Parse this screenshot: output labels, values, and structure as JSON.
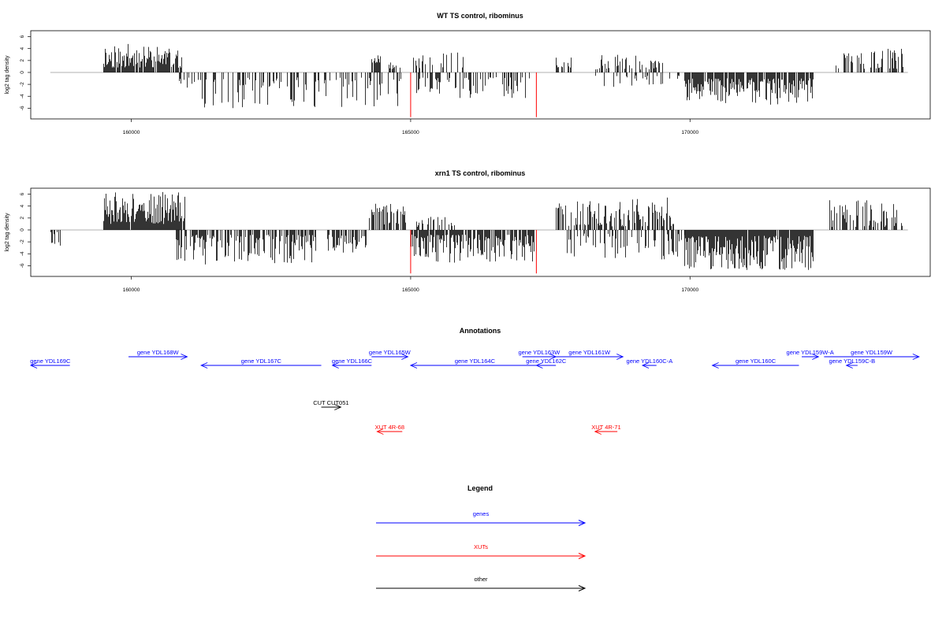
{
  "colors": {
    "gene": "#0000ff",
    "xut": "#ff0000",
    "other": "#000000",
    "bar": "#000000",
    "highlight": "#ff0000",
    "zero_line": "#999999"
  },
  "chart_data": [
    {
      "type": "bar",
      "title": "WT TS control, ribominus",
      "ylabel": "log2 tag density",
      "xlim": [
        158200,
        174300
      ],
      "ylim": [
        -7.8,
        7.0
      ],
      "xticks": [
        160000,
        165000,
        170000
      ],
      "xtick_labels": [
        "160000",
        "165000",
        "170000"
      ],
      "yticks": [
        6,
        4,
        2,
        0,
        -2,
        -4,
        -6
      ],
      "ytick_labels": [
        "6",
        "4",
        "2",
        "0",
        "-2",
        "-4",
        "-6"
      ],
      "x_line": [
        158550,
        173900
      ],
      "highlight_lines": [
        {
          "x": 165000,
          "y": -7.5
        },
        {
          "x": 167250,
          "y": -7.5
        }
      ],
      "segments": [
        {
          "x0": 159500,
          "x1": 160900,
          "amin": 0.8,
          "amax": 4.8,
          "sign": 1,
          "density": 0.9,
          "seed": 11
        },
        {
          "x0": 160850,
          "x1": 160950,
          "amin": 1.0,
          "amax": 2.8,
          "sign": -1,
          "density": 0.5,
          "seed": 12
        },
        {
          "x0": 161000,
          "x1": 164900,
          "amin": 0.8,
          "amax": 6.0,
          "sign": -1,
          "density": 0.32,
          "seed": 13
        },
        {
          "x0": 164300,
          "x1": 164450,
          "amin": 1.5,
          "amax": 3.2,
          "sign": 1,
          "density": 0.6,
          "seed": 14
        },
        {
          "x0": 164600,
          "x1": 164800,
          "amin": 0.5,
          "amax": 2.0,
          "sign": 1,
          "density": 0.5,
          "seed": 15
        },
        {
          "x0": 165050,
          "x1": 166100,
          "amin": 0.6,
          "amax": 3.5,
          "sign": 1,
          "density": 0.25,
          "seed": 16
        },
        {
          "x0": 165100,
          "x1": 167200,
          "amin": 0.8,
          "amax": 4.3,
          "sign": -1,
          "density": 0.35,
          "seed": 17
        },
        {
          "x0": 167600,
          "x1": 167900,
          "amin": 0.8,
          "amax": 2.7,
          "sign": 1,
          "density": 0.6,
          "seed": 18
        },
        {
          "x0": 168300,
          "x1": 169500,
          "amin": 0.5,
          "amax": 3.0,
          "sign": 1,
          "density": 0.45,
          "seed": 19
        },
        {
          "x0": 168300,
          "x1": 169900,
          "amin": 0.5,
          "amax": 2.5,
          "sign": -1,
          "density": 0.25,
          "seed": 20
        },
        {
          "x0": 169900,
          "x1": 172200,
          "amin": 1.0,
          "amax": 5.4,
          "sign": -1,
          "density": 0.85,
          "seed": 21
        },
        {
          "x0": 172600,
          "x1": 173800,
          "amin": 0.6,
          "amax": 4.0,
          "sign": 1,
          "density": 0.4,
          "seed": 22
        }
      ]
    },
    {
      "type": "bar",
      "title": "xrn1 TS control, ribominus",
      "ylabel": "log2 tag density",
      "xlim": [
        158200,
        174300
      ],
      "ylim": [
        -7.8,
        7.0
      ],
      "xticks": [
        160000,
        165000,
        170000
      ],
      "xtick_labels": [
        "160000",
        "165000",
        "170000"
      ],
      "yticks": [
        6,
        4,
        2,
        0,
        -2,
        -4,
        -6
      ],
      "ytick_labels": [
        "6",
        "4",
        "2",
        "0",
        "-2",
        "-4",
        "-6"
      ],
      "x_line": [
        158550,
        173900
      ],
      "highlight_lines": [
        {
          "x": 165000,
          "y": -7.3
        },
        {
          "x": 167250,
          "y": -7.3
        }
      ],
      "segments": [
        {
          "x0": 158550,
          "x1": 158720,
          "amin": 0.3,
          "amax": 2.8,
          "sign": -1,
          "density": 0.6,
          "seed": 31
        },
        {
          "x0": 159500,
          "x1": 160950,
          "amin": 1.0,
          "amax": 6.4,
          "sign": 1,
          "density": 0.95,
          "seed": 32
        },
        {
          "x0": 160800,
          "x1": 163300,
          "amin": 0.8,
          "amax": 5.8,
          "sign": -1,
          "density": 0.6,
          "seed": 33
        },
        {
          "x0": 163500,
          "x1": 164200,
          "amin": 0.8,
          "amax": 3.8,
          "sign": -1,
          "density": 0.6,
          "seed": 34
        },
        {
          "x0": 164250,
          "x1": 164900,
          "amin": 0.8,
          "amax": 4.4,
          "sign": 1,
          "density": 0.75,
          "seed": 35
        },
        {
          "x0": 165000,
          "x1": 167200,
          "amin": 0.8,
          "amax": 5.5,
          "sign": -1,
          "density": 0.8,
          "seed": 36
        },
        {
          "x0": 165100,
          "x1": 165800,
          "amin": 0.5,
          "amax": 2.2,
          "sign": 1,
          "density": 0.3,
          "seed": 37
        },
        {
          "x0": 167600,
          "x1": 169700,
          "amin": 0.6,
          "amax": 5.5,
          "sign": 1,
          "density": 0.6,
          "seed": 38
        },
        {
          "x0": 167800,
          "x1": 169900,
          "amin": 0.5,
          "amax": 5.0,
          "sign": -1,
          "density": 0.35,
          "seed": 39
        },
        {
          "x0": 169900,
          "x1": 172200,
          "amin": 1.0,
          "amax": 6.8,
          "sign": -1,
          "density": 0.98,
          "seed": 40
        },
        {
          "x0": 172500,
          "x1": 173800,
          "amin": 0.5,
          "amax": 5.0,
          "sign": 1,
          "density": 0.5,
          "seed": 41
        }
      ]
    }
  ],
  "annotations": {
    "title": "Annotations",
    "xlim": [
      158200,
      174300
    ],
    "features": [
      {
        "label": "gene YDL169C",
        "x0": 158200,
        "x1": 158900,
        "strand": "-",
        "row": 1,
        "kind": "gene"
      },
      {
        "label": "gene YDL168W",
        "x0": 159950,
        "x1": 161000,
        "strand": "+",
        "row": 0,
        "kind": "gene"
      },
      {
        "label": "gene YDL167C",
        "x0": 161250,
        "x1": 163400,
        "strand": "-",
        "row": 1,
        "kind": "gene"
      },
      {
        "label": "gene YDL166C",
        "x0": 163600,
        "x1": 164300,
        "strand": "-",
        "row": 1,
        "kind": "gene"
      },
      {
        "label": "gene YDL165W",
        "x0": 164300,
        "x1": 164950,
        "strand": "+",
        "row": 0,
        "kind": "gene"
      },
      {
        "label": "gene YDL164C",
        "x0": 165000,
        "x1": 167300,
        "strand": "-",
        "row": 1,
        "kind": "gene"
      },
      {
        "label": "gene YDL163W",
        "x0": 167000,
        "x1": 167600,
        "strand": "+",
        "row": 0,
        "kind": "gene"
      },
      {
        "label": "gene YDL162C",
        "x0": 167250,
        "x1": 167600,
        "strand": "-",
        "row": 1,
        "kind": "gene"
      },
      {
        "label": "gene YDL161W",
        "x0": 167600,
        "x1": 168800,
        "strand": "+",
        "row": 0,
        "kind": "gene"
      },
      {
        "label": "gene YDL160C-A",
        "x0": 169150,
        "x1": 169400,
        "strand": "-",
        "row": 1,
        "kind": "gene"
      },
      {
        "label": "gene YDL160C",
        "x0": 170400,
        "x1": 171950,
        "strand": "-",
        "row": 1,
        "kind": "gene"
      },
      {
        "label": "gene YDL159W-A",
        "x0": 172000,
        "x1": 172300,
        "strand": "+",
        "row": 0,
        "kind": "gene"
      },
      {
        "label": "gene YDL159W",
        "x0": 172400,
        "x1": 174100,
        "strand": "+",
        "row": 0,
        "kind": "gene"
      },
      {
        "label": "gene YDL159C-B",
        "x0": 172800,
        "x1": 173000,
        "strand": "-",
        "row": 1,
        "kind": "gene"
      },
      {
        "label": "CUT CUT051",
        "x0": 163400,
        "x1": 163750,
        "strand": "+",
        "row": 2,
        "kind": "other"
      },
      {
        "label": "XUT 4R-68",
        "x0": 164400,
        "x1": 164850,
        "strand": "-",
        "row": 3,
        "kind": "xut"
      },
      {
        "label": "XUT 4R-71",
        "x0": 168300,
        "x1": 168700,
        "strand": "-",
        "row": 3,
        "kind": "xut"
      }
    ]
  },
  "legend": {
    "title": "Legend",
    "items": [
      {
        "label": "genes",
        "kind": "gene"
      },
      {
        "label": "XUTs",
        "kind": "xut"
      },
      {
        "label": "other",
        "kind": "other"
      }
    ]
  }
}
